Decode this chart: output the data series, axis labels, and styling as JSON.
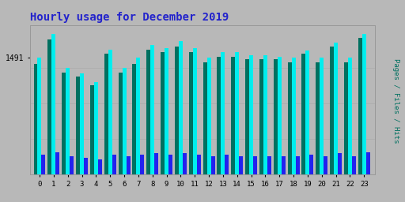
{
  "title": "Hourly usage for December 2019",
  "title_color": "#2222cc",
  "background_color": "#b8b8b8",
  "plot_bg_color": "#b8b8b8",
  "hours": [
    0,
    1,
    2,
    3,
    4,
    5,
    6,
    7,
    8,
    9,
    10,
    11,
    12,
    13,
    14,
    15,
    16,
    17,
    18,
    19,
    20,
    21,
    22,
    23
  ],
  "pages": [
    78,
    95,
    72,
    69,
    63,
    85,
    72,
    78,
    88,
    86,
    90,
    86,
    79,
    83,
    83,
    81,
    81,
    81,
    79,
    85,
    79,
    90,
    79,
    96
  ],
  "files": [
    82,
    99,
    75,
    71,
    65,
    88,
    75,
    82,
    91,
    89,
    94,
    89,
    82,
    86,
    86,
    84,
    84,
    83,
    82,
    87,
    82,
    93,
    82,
    99
  ],
  "hits": [
    14,
    16,
    13,
    12,
    11,
    14,
    13,
    14,
    15,
    14,
    15,
    14,
    13,
    14,
    13,
    13,
    13,
    13,
    13,
    14,
    13,
    15,
    13,
    16
  ],
  "ymax": 105,
  "ytick_val": 82,
  "ytick_label": "1491",
  "color_pages": "#007060",
  "color_files": "#00eeee",
  "color_hits": "#2222ee",
  "bar_width": 0.28,
  "right_label": "Pages / Files / Hits",
  "right_label_color": "#007060"
}
